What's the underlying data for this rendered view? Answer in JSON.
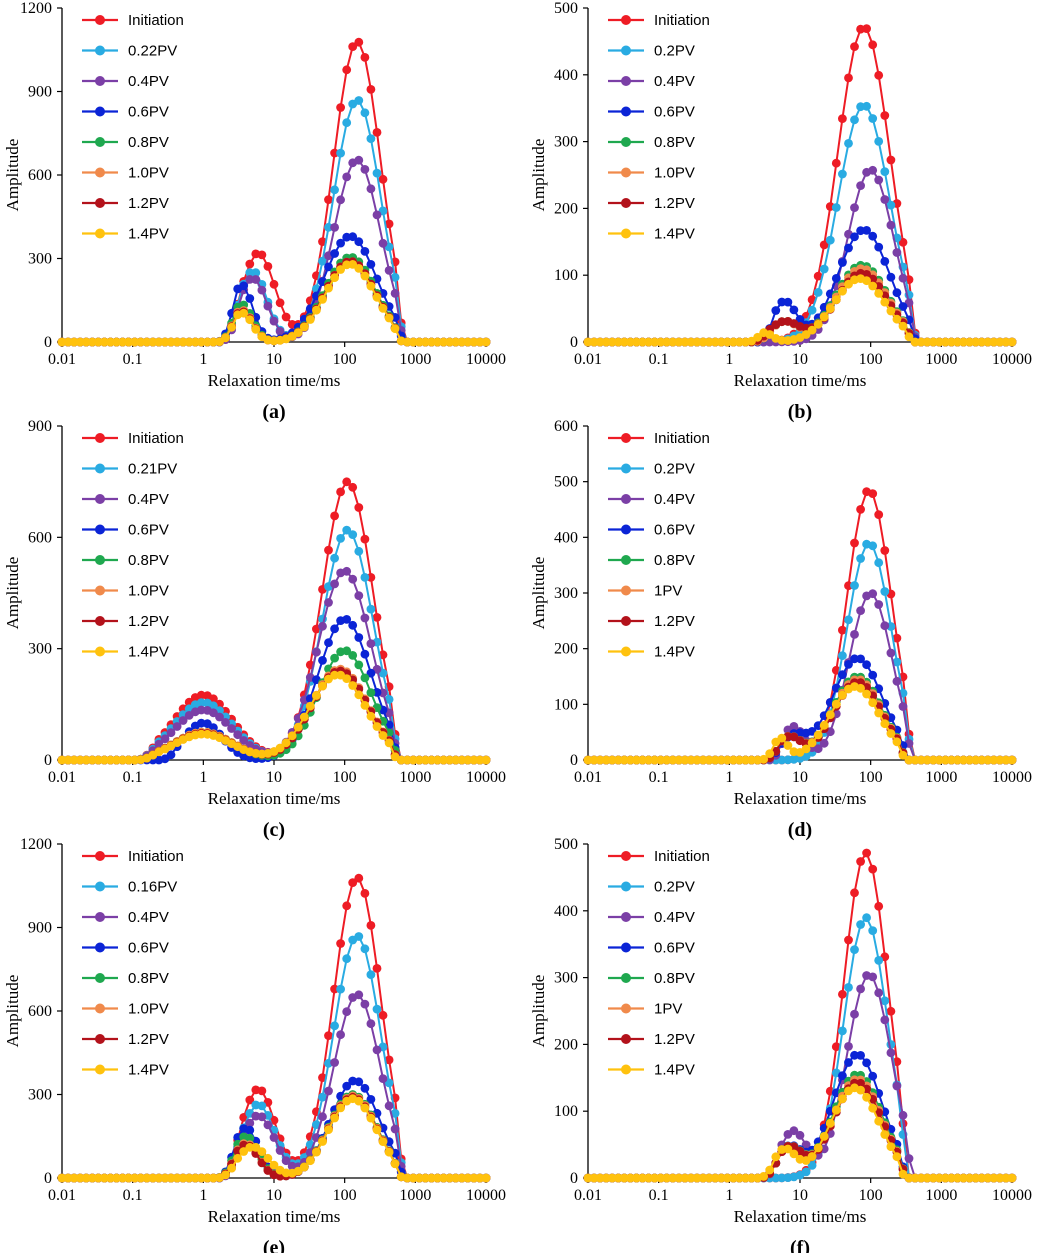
{
  "figure": {
    "colors": {
      "Initiation": "#EE1C25",
      "pv1": "#29ABE2",
      "pv2": "#7B3FA6",
      "pv3": "#0B24D6",
      "pv4": "#1FA84F",
      "pv5": "#F08A4B",
      "pv6": "#B3121B",
      "pv7": "#FFC20E"
    }
  },
  "chart_data": [
    {
      "type": "line",
      "panel_label": "(a)",
      "xlabel": "Relaxation time/ms",
      "ylabel": "Amplitude",
      "xscale": "log",
      "xlim": [
        0.01,
        10000
      ],
      "xticks": [
        "0.01",
        "0.1",
        "1",
        "10",
        "100",
        "1000",
        "10000"
      ],
      "ylim": [
        0,
        1200
      ],
      "yticks": [
        "0",
        "300",
        "600",
        "900",
        "1200"
      ],
      "grid": false,
      "legend_position": "top-left",
      "series": [
        {
          "name": "Initiation",
          "pk1": {
            "t": 6,
            "a": 320
          },
          "pk2": {
            "t": 150,
            "a": 1080
          },
          "start": 1.8,
          "end": 700
        },
        {
          "name": "0.22PV",
          "pk1": {
            "t": 5,
            "a": 255
          },
          "pk2": {
            "t": 150,
            "a": 870
          },
          "start": 1.8,
          "end": 700
        },
        {
          "name": "0.4PV",
          "pk1": {
            "t": 5,
            "a": 230
          },
          "pk2": {
            "t": 150,
            "a": 655
          },
          "start": 1.8,
          "end": 700
        },
        {
          "name": "0.6PV",
          "pk1": {
            "t": 3.5,
            "a": 205
          },
          "pk2": {
            "t": 120,
            "a": 380
          },
          "start": 1.6,
          "end": 700
        },
        {
          "name": "0.8PV",
          "pk1": {
            "t": 3.5,
            "a": 135
          },
          "pk2": {
            "t": 120,
            "a": 305
          },
          "start": 1.6,
          "end": 650
        },
        {
          "name": "1.0PV",
          "pk1": {
            "t": 3.5,
            "a": 115
          },
          "pk2": {
            "t": 120,
            "a": 290
          },
          "start": 1.6,
          "end": 650
        },
        {
          "name": "1.2PV",
          "pk1": {
            "t": 3.5,
            "a": 110
          },
          "pk2": {
            "t": 120,
            "a": 290
          },
          "start": 1.6,
          "end": 650
        },
        {
          "name": "1.4PV",
          "pk1": {
            "t": 3.5,
            "a": 105
          },
          "pk2": {
            "t": 120,
            "a": 280
          },
          "start": 1.6,
          "end": 650
        }
      ]
    },
    {
      "type": "line",
      "panel_label": "(b)",
      "xlabel": "Relaxation time/ms",
      "ylabel": "Amplitude",
      "xscale": "log",
      "xlim": [
        0.01,
        10000
      ],
      "xticks": [
        "0.01",
        "0.1",
        "1",
        "10",
        "100",
        "1000",
        "10000"
      ],
      "ylim": [
        0,
        500
      ],
      "yticks": [
        "0",
        "100",
        "200",
        "300",
        "400",
        "500"
      ],
      "grid": false,
      "legend_position": "top-left",
      "series": [
        {
          "name": "Initiation",
          "pk1": {
            "t": 6,
            "a": 0
          },
          "pk2": {
            "t": 80,
            "a": 472
          },
          "start": 2.5,
          "end": 450
        },
        {
          "name": "0.2PV",
          "pk1": {
            "t": 6,
            "a": 0
          },
          "pk2": {
            "t": 80,
            "a": 355
          },
          "start": 2.5,
          "end": 450
        },
        {
          "name": "0.4PV",
          "pk1": {
            "t": 6,
            "a": 0
          },
          "pk2": {
            "t": 100,
            "a": 258
          },
          "start": 2.5,
          "end": 450
        },
        {
          "name": "0.6PV",
          "pk1": {
            "t": 6,
            "a": 60
          },
          "pk2": {
            "t": 80,
            "a": 168
          },
          "start": 2.5,
          "end": 450
        },
        {
          "name": "0.8PV",
          "pk1": {
            "t": 6,
            "a": 30
          },
          "pk2": {
            "t": 75,
            "a": 115
          },
          "start": 2.2,
          "end": 420
        },
        {
          "name": "1.0PV",
          "pk1": {
            "t": 6,
            "a": 30
          },
          "pk2": {
            "t": 75,
            "a": 110
          },
          "start": 2.2,
          "end": 420
        },
        {
          "name": "1.2PV",
          "pk1": {
            "t": 6,
            "a": 30
          },
          "pk2": {
            "t": 75,
            "a": 103
          },
          "start": 2.0,
          "end": 420
        },
        {
          "name": "1.4PV",
          "pk1": {
            "t": 3,
            "a": 15
          },
          "pk2": {
            "t": 70,
            "a": 95
          },
          "start": 1.8,
          "end": 400
        }
      ]
    },
    {
      "type": "line",
      "panel_label": "(c)",
      "xlabel": "Relaxation time/ms",
      "ylabel": "Amplitude",
      "xscale": "log",
      "xlim": [
        0.01,
        10000
      ],
      "xticks": [
        "0.01",
        "0.1",
        "1",
        "10",
        "100",
        "1000",
        "10000"
      ],
      "ylim": [
        0,
        900
      ],
      "yticks": [
        "0",
        "300",
        "600",
        "900"
      ],
      "grid": false,
      "legend_position": "top-left",
      "series": [
        {
          "name": "Initiation",
          "pk1": {
            "t": 1,
            "a": 175
          },
          "pk2": {
            "t": 110,
            "a": 750
          },
          "start": 0.12,
          "end": 600
        },
        {
          "name": "0.21PV",
          "pk1": {
            "t": 1,
            "a": 155
          },
          "pk2": {
            "t": 110,
            "a": 620
          },
          "start": 0.12,
          "end": 600
        },
        {
          "name": "0.4PV",
          "pk1": {
            "t": 1,
            "a": 135
          },
          "pk2": {
            "t": 100,
            "a": 510
          },
          "start": 0.12,
          "end": 600
        },
        {
          "name": "0.6PV",
          "pk1": {
            "t": 1,
            "a": 100
          },
          "pk2": {
            "t": 100,
            "a": 380
          },
          "start": 0.25,
          "end": 600
        },
        {
          "name": "0.8PV",
          "pk1": {
            "t": 1,
            "a": 75
          },
          "pk2": {
            "t": 100,
            "a": 295
          },
          "start": 0.12,
          "end": 600
        },
        {
          "name": "1.0PV",
          "pk1": {
            "t": 1,
            "a": 75
          },
          "pk2": {
            "t": 85,
            "a": 245
          },
          "start": 0.12,
          "end": 580
        },
        {
          "name": "1.2PV",
          "pk1": {
            "t": 1,
            "a": 72
          },
          "pk2": {
            "t": 85,
            "a": 240
          },
          "start": 0.12,
          "end": 580
        },
        {
          "name": "1.4PV",
          "pk1": {
            "t": 1,
            "a": 70
          },
          "pk2": {
            "t": 80,
            "a": 230
          },
          "start": 0.12,
          "end": 560
        }
      ]
    },
    {
      "type": "line",
      "panel_label": "(d)",
      "xlabel": "Relaxation time/ms",
      "ylabel": "Amplitude",
      "xscale": "log",
      "xlim": [
        0.01,
        10000
      ],
      "xticks": [
        "0.01",
        "0.1",
        "1",
        "10",
        "100",
        "1000",
        "10000"
      ],
      "ylim": [
        0,
        600
      ],
      "yticks": [
        "0",
        "100",
        "200",
        "300",
        "400",
        "500",
        "600"
      ],
      "grid": false,
      "legend_position": "top-left",
      "series": [
        {
          "name": "Initiation",
          "pk1": {
            "t": 8,
            "a": 0
          },
          "pk2": {
            "t": 95,
            "a": 485
          },
          "start": 4.5,
          "end": 400
        },
        {
          "name": "0.2PV",
          "pk1": {
            "t": 8,
            "a": 0
          },
          "pk2": {
            "t": 95,
            "a": 390
          },
          "start": 4.0,
          "end": 400
        },
        {
          "name": "0.4PV",
          "pk1": {
            "t": 8,
            "a": 60
          },
          "pk2": {
            "t": 100,
            "a": 300
          },
          "start": 3.5,
          "end": 400
        },
        {
          "name": "0.6PV",
          "pk1": {
            "t": 8,
            "a": 40
          },
          "pk2": {
            "t": 65,
            "a": 183
          },
          "start": 3.0,
          "end": 350
        },
        {
          "name": "0.8PV",
          "pk1": {
            "t": 7,
            "a": 40
          },
          "pk2": {
            "t": 65,
            "a": 150
          },
          "start": 3.0,
          "end": 330
        },
        {
          "name": "1PV",
          "pk1": {
            "t": 7,
            "a": 40
          },
          "pk2": {
            "t": 65,
            "a": 145
          },
          "start": 3.0,
          "end": 330
        },
        {
          "name": "1.2PV",
          "pk1": {
            "t": 7,
            "a": 40
          },
          "pk2": {
            "t": 65,
            "a": 140
          },
          "start": 3.0,
          "end": 330
        },
        {
          "name": "1.4PV",
          "pk1": {
            "t": 5,
            "a": 40
          },
          "pk2": {
            "t": 60,
            "a": 132
          },
          "start": 2.8,
          "end": 320
        }
      ]
    },
    {
      "type": "line",
      "panel_label": "(e)",
      "xlabel": "Relaxation time/ms",
      "ylabel": "Amplitude",
      "xscale": "log",
      "xlim": [
        0.01,
        10000
      ],
      "xticks": [
        "0.01",
        "0.1",
        "1",
        "10",
        "100",
        "1000",
        "10000"
      ],
      "ylim": [
        0,
        1200
      ],
      "yticks": [
        "0",
        "300",
        "600",
        "900",
        "1200"
      ],
      "grid": false,
      "legend_position": "top-left",
      "series": [
        {
          "name": "Initiation",
          "pk1": {
            "t": 6,
            "a": 320
          },
          "pk2": {
            "t": 150,
            "a": 1080
          },
          "start": 1.8,
          "end": 700
        },
        {
          "name": "0.16PV",
          "pk1": {
            "t": 6,
            "a": 265
          },
          "pk2": {
            "t": 150,
            "a": 870
          },
          "start": 1.8,
          "end": 700
        },
        {
          "name": "0.4PV",
          "pk1": {
            "t": 6,
            "a": 225
          },
          "pk2": {
            "t": 150,
            "a": 660
          },
          "start": 1.8,
          "end": 700
        },
        {
          "name": "0.6PV",
          "pk1": {
            "t": 4,
            "a": 180
          },
          "pk2": {
            "t": 140,
            "a": 350
          },
          "start": 1.6,
          "end": 700
        },
        {
          "name": "0.8PV",
          "pk1": {
            "t": 4,
            "a": 150
          },
          "pk2": {
            "t": 130,
            "a": 300
          },
          "start": 1.6,
          "end": 650
        },
        {
          "name": "1.0PV",
          "pk1": {
            "t": 4,
            "a": 125
          },
          "pk2": {
            "t": 130,
            "a": 295
          },
          "start": 1.6,
          "end": 650
        },
        {
          "name": "1.2PV",
          "pk1": {
            "t": 4,
            "a": 120
          },
          "pk2": {
            "t": 130,
            "a": 290
          },
          "start": 1.6,
          "end": 650
        },
        {
          "name": "1.4PV",
          "pk1": {
            "t": 5,
            "a": 112
          },
          "pk2": {
            "t": 130,
            "a": 285
          },
          "start": 1.6,
          "end": 650
        }
      ]
    },
    {
      "type": "line",
      "panel_label": "(f)",
      "xlabel": "Relaxation time/ms",
      "ylabel": "Amplitude",
      "xscale": "log",
      "xlim": [
        0.01,
        10000
      ],
      "xticks": [
        "0.01",
        "0.1",
        "1",
        "10",
        "100",
        "1000",
        "10000"
      ],
      "ylim": [
        0,
        500
      ],
      "yticks": [
        "0",
        "100",
        "200",
        "300",
        "400",
        "500"
      ],
      "grid": false,
      "legend_position": "top-left",
      "series": [
        {
          "name": "Initiation",
          "pk1": {
            "t": 8,
            "a": 0
          },
          "pk2": {
            "t": 85,
            "a": 487
          },
          "start": 4.0,
          "end": 350
        },
        {
          "name": "0.2PV",
          "pk1": {
            "t": 8,
            "a": 0
          },
          "pk2": {
            "t": 85,
            "a": 390
          },
          "start": 4.0,
          "end": 350
        },
        {
          "name": "0.4PV",
          "pk1": {
            "t": 8,
            "a": 70
          },
          "pk2": {
            "t": 95,
            "a": 305
          },
          "start": 3.0,
          "end": 400
        },
        {
          "name": "0.6PV",
          "pk1": {
            "t": 7,
            "a": 45
          },
          "pk2": {
            "t": 65,
            "a": 185
          },
          "start": 2.8,
          "end": 330
        },
        {
          "name": "0.8PV",
          "pk1": {
            "t": 7,
            "a": 45
          },
          "pk2": {
            "t": 65,
            "a": 155
          },
          "start": 2.8,
          "end": 330
        },
        {
          "name": "1PV",
          "pk1": {
            "t": 7,
            "a": 45
          },
          "pk2": {
            "t": 65,
            "a": 148
          },
          "start": 2.8,
          "end": 330
        },
        {
          "name": "1.2PV",
          "pk1": {
            "t": 7,
            "a": 45
          },
          "pk2": {
            "t": 65,
            "a": 143
          },
          "start": 2.8,
          "end": 330
        },
        {
          "name": "1.4PV",
          "pk1": {
            "t": 6,
            "a": 42
          },
          "pk2": {
            "t": 60,
            "a": 135
          },
          "start": 2.6,
          "end": 310
        }
      ]
    }
  ]
}
